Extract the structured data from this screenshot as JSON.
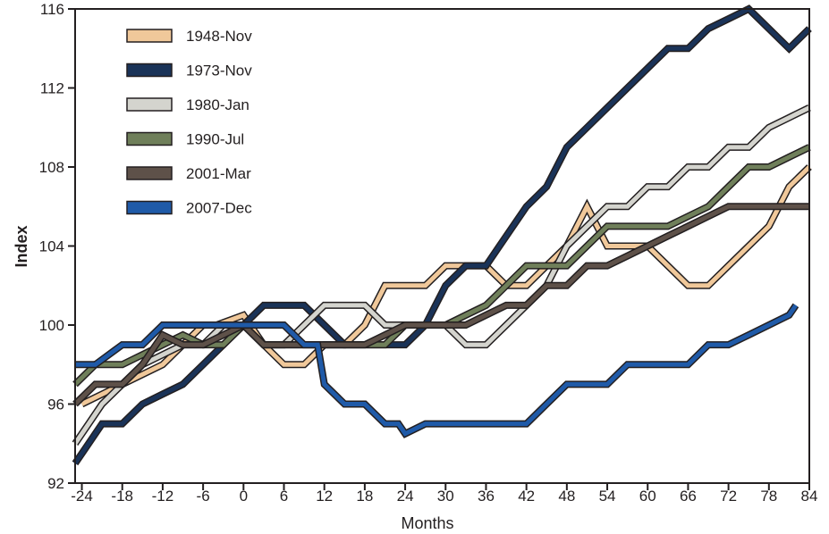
{
  "chart_data": {
    "type": "line",
    "title": "",
    "xlabel": "Months",
    "ylabel": "Index",
    "xlim": [
      -25,
      84
    ],
    "ylim": [
      92,
      116
    ],
    "x_ticks": [
      -24,
      -18,
      -12,
      -6,
      0,
      6,
      12,
      18,
      24,
      30,
      36,
      42,
      48,
      54,
      60,
      66,
      72,
      78,
      84
    ],
    "y_ticks": [
      92,
      96,
      100,
      104,
      108,
      112,
      116
    ],
    "grid": false,
    "legend_position": "top-left",
    "series": [
      {
        "name": "1948-Nov",
        "color": "#f0c89a",
        "x": [
          -24,
          -18,
          -12,
          -9,
          -6,
          -4,
          0,
          3,
          6,
          9,
          12,
          15,
          18,
          21,
          24,
          27,
          30,
          33,
          36,
          39,
          42,
          45,
          48,
          51,
          54,
          57,
          60,
          63,
          66,
          69,
          72,
          75,
          78,
          81,
          84
        ],
        "y": [
          96,
          97,
          98,
          99,
          100,
          100,
          100.5,
          99,
          98,
          98,
          99,
          99,
          100,
          102,
          102,
          102,
          103,
          103,
          103,
          102,
          102,
          103,
          104,
          106,
          104,
          104,
          104,
          103,
          102,
          102,
          103,
          104,
          105,
          107,
          108
        ]
      },
      {
        "name": "1973-Nov",
        "color": "#1a3358",
        "x": [
          -25,
          -23,
          -21,
          -18,
          -15,
          -12,
          -9,
          -6,
          -3,
          0,
          3,
          6,
          9,
          12,
          15,
          18,
          21,
          24,
          27,
          30,
          33,
          36,
          38,
          40,
          42,
          45,
          48,
          51,
          54,
          57,
          60,
          63,
          66,
          69,
          72,
          75,
          78,
          81,
          84
        ],
        "y": [
          93,
          94,
          95,
          95,
          96,
          96.5,
          97,
          98,
          99,
          100,
          101,
          101,
          101,
          100,
          99,
          99,
          99,
          99,
          100,
          102,
          103,
          103,
          104,
          105,
          106,
          107,
          109,
          110,
          111,
          112,
          113,
          114,
          114,
          115,
          115.5,
          116,
          115,
          114,
          115
        ]
      },
      {
        "name": "1980-Jan",
        "color": "#d4d4ce",
        "x": [
          -25,
          -23,
          -21,
          -18,
          -15,
          -12,
          -9,
          -6,
          -3,
          0,
          3,
          6,
          9,
          12,
          15,
          18,
          21,
          24,
          27,
          30,
          33,
          36,
          39,
          42,
          45,
          48,
          51,
          54,
          57,
          60,
          63,
          66,
          69,
          72,
          75,
          78,
          81,
          84
        ],
        "y": [
          94,
          95,
          96,
          97,
          98,
          98.5,
          99,
          99,
          100,
          100,
          99,
          99,
          100,
          101,
          101,
          101,
          100,
          100,
          100,
          100,
          99,
          99,
          100,
          101,
          102,
          104,
          105,
          106,
          106,
          107,
          107,
          108,
          108,
          109,
          109,
          110,
          110.5,
          111
        ]
      },
      {
        "name": "1990-Jul",
        "color": "#6f7f5a",
        "x": [
          -25,
          -22,
          -18,
          -15,
          -12,
          -9,
          -6,
          -3,
          0,
          3,
          6,
          9,
          12,
          15,
          18,
          21,
          24,
          27,
          30,
          33,
          36,
          39,
          42,
          45,
          48,
          51,
          54,
          57,
          60,
          63,
          66,
          69,
          72,
          75,
          78,
          81,
          84
        ],
        "y": [
          97,
          98,
          98,
          98.5,
          99,
          99.5,
          99,
          99,
          100,
          99,
          99,
          99,
          99,
          99,
          99,
          99,
          100,
          100,
          100,
          100.5,
          101,
          102,
          103,
          103,
          103,
          104,
          105,
          105,
          105,
          105,
          105.5,
          106,
          107,
          108,
          108,
          108.5,
          109
        ]
      },
      {
        "name": "2001-Mar",
        "color": "#5e5149",
        "x": [
          -25,
          -22,
          -18,
          -15,
          -12,
          -9,
          -6,
          -3,
          0,
          3,
          6,
          9,
          12,
          15,
          18,
          21,
          24,
          27,
          30,
          33,
          36,
          39,
          42,
          45,
          48,
          51,
          54,
          57,
          60,
          63,
          66,
          69,
          72,
          75,
          78,
          81,
          84
        ],
        "y": [
          96,
          97,
          97,
          98,
          99.5,
          99,
          99,
          99.5,
          100,
          99,
          99,
          99,
          99,
          99,
          99,
          99.5,
          100,
          100,
          100,
          100,
          100.5,
          101,
          101,
          102,
          102,
          103,
          103,
          103.5,
          104,
          104.5,
          105,
          105.5,
          106,
          106,
          106,
          106,
          106
        ]
      },
      {
        "name": "2007-Dec",
        "color": "#1f5aa8",
        "x": [
          -25,
          -22,
          -18,
          -15,
          -12,
          -9,
          -6,
          -3,
          0,
          3,
          6,
          9,
          11,
          12,
          15,
          18,
          21,
          23,
          24,
          27,
          30,
          33,
          36,
          39,
          42,
          45,
          48,
          51,
          54,
          57,
          60,
          63,
          66,
          69,
          72,
          75,
          78,
          81,
          82
        ],
        "y": [
          98,
          98,
          99,
          99,
          100,
          100,
          100,
          100,
          100,
          100,
          100,
          99,
          99,
          97,
          96,
          96,
          95,
          95,
          94.5,
          95,
          95,
          95,
          95,
          95,
          95,
          96,
          97,
          97,
          97,
          98,
          98,
          98,
          98,
          99,
          99,
          99.5,
          100,
          100.5,
          101
        ]
      }
    ]
  }
}
